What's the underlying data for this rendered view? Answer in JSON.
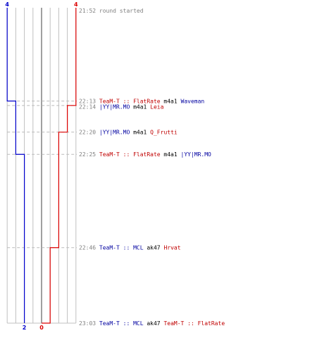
{
  "chart_data": {
    "type": "line",
    "title": "",
    "team_colors": {
      "blue": "#0000cc",
      "red": "#dd0000",
      "center": "#777777",
      "grid": "#c0c0c0",
      "dash": "#bbbbbb"
    },
    "start": {
      "time": "21:52",
      "text": "round started"
    },
    "series": [
      {
        "team": "blue",
        "start_value": 4,
        "end_value": 2,
        "start_label": "4",
        "end_label": "2"
      },
      {
        "team": "red",
        "start_value": 4,
        "end_value": 0,
        "start_label": "4",
        "end_label": "0"
      }
    ],
    "events": [
      {
        "time": "22:13",
        "killer": "TeaM-T :: FlatRate",
        "killer_team": "red",
        "weapon": "m4a1",
        "victim": "Waveman",
        "victim_team": "blue",
        "blue": 3,
        "red": 4
      },
      {
        "time": "22:14",
        "killer": "|YY|MR.MO",
        "killer_team": "blue",
        "weapon": "m4a1",
        "victim": "Leia",
        "victim_team": "red",
        "blue": 3,
        "red": 3
      },
      {
        "time": "22:20",
        "killer": "|YY|MR.MO",
        "killer_team": "blue",
        "weapon": "m4a1",
        "victim": "Q_Frutti",
        "victim_team": "red",
        "blue": 3,
        "red": 2
      },
      {
        "time": "22:25",
        "killer": "TeaM-T :: FlatRate",
        "killer_team": "red",
        "weapon": "m4a1",
        "victim": "|YY|MR.MO",
        "victim_team": "blue",
        "blue": 2,
        "red": 2
      },
      {
        "time": "22:46",
        "killer": "TeaM-T :: MCL",
        "killer_team": "blue",
        "weapon": "ak47",
        "victim": "Hrvat",
        "victim_team": "red",
        "blue": 2,
        "red": 1
      },
      {
        "time": "23:03",
        "killer": "TeaM-T :: MCL",
        "killer_team": "blue",
        "weapon": "ak47",
        "victim": "TeaM-T :: FlatRate",
        "victim_team": "red",
        "blue": 2,
        "red": 0
      }
    ],
    "grid": true
  }
}
